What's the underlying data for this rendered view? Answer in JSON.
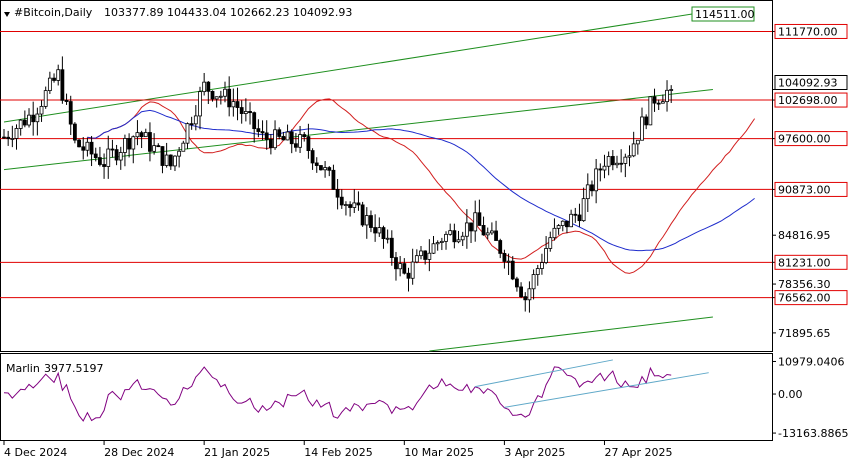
{
  "header": {
    "symbol": "#Bitcoin,Daily",
    "ohlc": "103377.89 104433.04 102662.23 104092.93"
  },
  "indicator": {
    "name": "Marlin",
    "value": "3977.5197",
    "axis_labels": [
      "10979.0406",
      "0.00",
      "-13163.8865"
    ]
  },
  "colors": {
    "background": "#ffffff",
    "candles": "#000000",
    "level_lines": "#e00000",
    "channel_lines": "#1f8f1f",
    "fast_ma": "#d21f1f",
    "slow_ma": "#1f2ccc",
    "indicator_line": "#800080",
    "indicator_channel": "#5fa8c8"
  },
  "chart_data": {
    "type": "line",
    "title": "#Bitcoin,Daily",
    "timeframe": "Daily",
    "y_axis_ticks": [
      111770.0,
      104092.93,
      102698.0,
      97600.0,
      90873.0,
      84816.95,
      81231.0,
      78356.3,
      76562.0,
      71895.65
    ],
    "x_tick_labels": [
      "4 Dec 2024",
      "28 Dec 2024",
      "21 Jan 2025",
      "14 Feb 2025",
      "10 Mar 2025",
      "3 Apr 2025",
      "27 Apr 2025"
    ],
    "levels": [
      {
        "value": 111770.0,
        "label": "111770.00"
      },
      {
        "value": 102698.0,
        "label": "102698.00"
      },
      {
        "value": 97600.0,
        "label": "97600.00"
      },
      {
        "value": 90873.0,
        "label": "90873.00"
      },
      {
        "value": 81231.0,
        "label": "81231.00"
      },
      {
        "value": 76562.0,
        "label": "76562.00"
      }
    ],
    "current_price": {
      "value": 104092.93,
      "label": "104092.93"
    },
    "price_labels": [
      "114511.00"
    ],
    "ylim": [
      69500,
      115800
    ],
    "close_series": [
      {
        "date": "4 Dec 2024",
        "close": 97800
      },
      {
        "date": "11 Dec 2024",
        "close": 101000
      },
      {
        "date": "17 Dec 2024",
        "close": 106000
      },
      {
        "date": "21 Dec 2024",
        "close": 97000
      },
      {
        "date": "28 Dec 2024",
        "close": 94500
      },
      {
        "date": "5 Jan 2025",
        "close": 98500
      },
      {
        "date": "13 Jan 2025",
        "close": 94000
      },
      {
        "date": "21 Jan 2025",
        "close": 104500
      },
      {
        "date": "28 Jan 2025",
        "close": 102500
      },
      {
        "date": "4 Feb 2025",
        "close": 97700
      },
      {
        "date": "14 Feb 2025",
        "close": 97000
      },
      {
        "date": "25 Feb 2025",
        "close": 88500
      },
      {
        "date": "3 Mar 2025",
        "close": 86000
      },
      {
        "date": "10 Mar 2025",
        "close": 79500
      },
      {
        "date": "19 Mar 2025",
        "close": 84500
      },
      {
        "date": "27 Mar 2025",
        "close": 86500
      },
      {
        "date": "3 Apr 2025",
        "close": 82500
      },
      {
        "date": "8 Apr 2025",
        "close": 76500
      },
      {
        "date": "14 Apr 2025",
        "close": 84500
      },
      {
        "date": "21 Apr 2025",
        "close": 88000
      },
      {
        "date": "27 Apr 2025",
        "close": 94800
      },
      {
        "date": "3 May 2025",
        "close": 96000
      },
      {
        "date": "9 May 2025",
        "close": 103000
      },
      {
        "date": "13 May 2025",
        "close": 104092.93
      }
    ]
  }
}
